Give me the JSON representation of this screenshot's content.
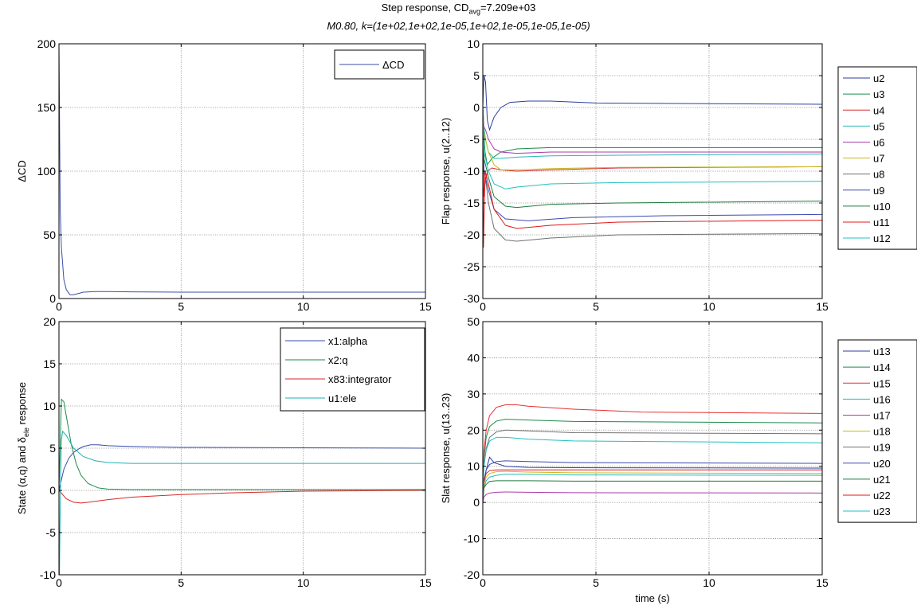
{
  "figure": {
    "title_prefix": "Step response, CD",
    "title_sub": "avg",
    "title_suffix": "=7.209e+03",
    "subtitle": "M0.80, k=(1e+02,1e+02,1e-05,1e+02,1e-05,1e-05,1e-05)"
  },
  "chart_data": [
    {
      "id": "cd",
      "type": "line",
      "ylabel": "ΔCD",
      "xlabel": "",
      "xlim": [
        0,
        15
      ],
      "ylim": [
        0,
        200
      ],
      "xticks": [
        0,
        5,
        10,
        15
      ],
      "yticks": [
        0,
        50,
        100,
        150,
        200
      ],
      "grid": true,
      "legend": "top-right",
      "series": [
        {
          "name": "ΔCD",
          "color": "#3b4ea8",
          "x": [
            0,
            0.02,
            0.05,
            0.1,
            0.2,
            0.3,
            0.45,
            0.6,
            0.8,
            1.0,
            1.5,
            2,
            3,
            5,
            10,
            15
          ],
          "y": [
            200,
            150,
            70,
            40,
            15,
            7,
            3,
            3,
            4,
            5,
            5.5,
            5.5,
            5.2,
            5,
            5,
            5
          ]
        }
      ]
    },
    {
      "id": "flap",
      "type": "line",
      "ylabel": "Flap response, u(2..12)",
      "xlabel": "",
      "xlim": [
        0,
        15
      ],
      "ylim": [
        -30,
        10
      ],
      "xticks": [
        0,
        5,
        10,
        15
      ],
      "yticks": [
        -30,
        -25,
        -20,
        -15,
        -10,
        -5,
        0,
        5,
        10
      ],
      "grid": true,
      "legend": "outside-right",
      "series": [
        {
          "name": "u2",
          "color": "#2c3e9e",
          "x": [
            0,
            0.05,
            0.12,
            0.2,
            0.3,
            0.5,
            0.8,
            1.2,
            2,
            3,
            5,
            15
          ],
          "y": [
            0,
            5,
            4,
            -2,
            -3.5,
            -1.5,
            0,
            0.8,
            1,
            1,
            0.7,
            0.5
          ]
        },
        {
          "name": "u3",
          "color": "#1b8a4a",
          "x": [
            0,
            0.05,
            0.1,
            0.2,
            0.4,
            0.8,
            1.5,
            3,
            6,
            15
          ],
          "y": [
            0,
            -4,
            -7,
            -9,
            -8,
            -7,
            -6.5,
            -6.3,
            -6.3,
            -6.3
          ]
        },
        {
          "name": "u4",
          "color": "#d62828",
          "x": [
            0,
            0.05,
            0.1,
            0.2,
            0.4,
            0.8,
            1.5,
            3,
            6,
            15
          ],
          "y": [
            0,
            -14,
            -12,
            -10,
            -9.5,
            -9.8,
            -10,
            -9.8,
            -9.5,
            -9.3
          ]
        },
        {
          "name": "u5",
          "color": "#28b8b0",
          "x": [
            0,
            0.05,
            0.12,
            0.25,
            0.5,
            0.8,
            1.5,
            3,
            6,
            15
          ],
          "y": [
            0,
            -3,
            -5,
            -7,
            -8,
            -8,
            -7.8,
            -7.6,
            -7.5,
            -7.3
          ]
        },
        {
          "name": "u6",
          "color": "#a83ca8",
          "x": [
            0,
            0.05,
            0.12,
            0.25,
            0.5,
            0.8,
            1.5,
            3,
            6,
            15
          ],
          "y": [
            0,
            -3,
            -3.5,
            -5,
            -6.5,
            -7,
            -7.2,
            -7,
            -7,
            -7
          ]
        },
        {
          "name": "u7",
          "color": "#c8b820",
          "x": [
            0,
            0.05,
            0.12,
            0.25,
            0.5,
            0.8,
            1.5,
            3,
            6,
            15
          ],
          "y": [
            0,
            -4,
            -5,
            -7,
            -9,
            -9.8,
            -9.8,
            -9.6,
            -9.4,
            -9.3
          ]
        },
        {
          "name": "u8",
          "color": "#707070",
          "x": [
            0,
            0.05,
            0.12,
            0.25,
            0.5,
            1,
            1.5,
            3,
            6,
            15
          ],
          "y": [
            0,
            -10,
            -11,
            -15,
            -19,
            -20.8,
            -21,
            -20.5,
            -20,
            -19.8
          ]
        },
        {
          "name": "u9",
          "color": "#3a4ab0",
          "x": [
            0,
            0.05,
            0.12,
            0.25,
            0.5,
            1,
            2,
            4,
            8,
            15
          ],
          "y": [
            0,
            -10,
            -11,
            -13,
            -16,
            -17.5,
            -17.8,
            -17.3,
            -17,
            -16.8
          ]
        },
        {
          "name": "u10",
          "color": "#1e7a3e",
          "x": [
            0,
            0.05,
            0.12,
            0.25,
            0.5,
            1,
            1.5,
            3,
            6,
            15
          ],
          "y": [
            0,
            -8,
            -9,
            -11,
            -14,
            -15.5,
            -15.7,
            -15.2,
            -15,
            -14.7
          ]
        },
        {
          "name": "u11",
          "color": "#e01818",
          "x": [
            0,
            0.03,
            0.1,
            0.25,
            0.5,
            1,
            1.5,
            3,
            6,
            15
          ],
          "y": [
            0,
            -22,
            -10,
            -12,
            -16,
            -18.5,
            -19,
            -18.5,
            -18,
            -17.7
          ]
        },
        {
          "name": "u12",
          "color": "#20c0c0",
          "x": [
            0,
            0.05,
            0.12,
            0.25,
            0.5,
            1,
            1.5,
            3,
            6,
            15
          ],
          "y": [
            0,
            -7,
            -8,
            -10,
            -12,
            -12.8,
            -12.5,
            -12,
            -11.8,
            -11.6
          ]
        }
      ]
    },
    {
      "id": "state",
      "type": "line",
      "ylabel_prefix": "State (α,q) and δ",
      "ylabel_sub": "ele",
      "ylabel_suffix": " response",
      "xlabel": "",
      "xlim": [
        0,
        15
      ],
      "ylim": [
        -10,
        20
      ],
      "xticks": [
        0,
        5,
        10,
        15
      ],
      "yticks": [
        -10,
        -5,
        0,
        5,
        10,
        15,
        20
      ],
      "grid": true,
      "legend": "top-right",
      "series": [
        {
          "name": "x1:alpha",
          "color": "#3b4ea8",
          "x": [
            0,
            0.2,
            0.4,
            0.6,
            0.8,
            1.0,
            1.3,
            1.6,
            2,
            3,
            5,
            15
          ],
          "y": [
            0,
            2.5,
            3.8,
            4.5,
            4.9,
            5.2,
            5.4,
            5.4,
            5.3,
            5.2,
            5.1,
            5
          ]
        },
        {
          "name": "x2:q",
          "color": "#1b8a4a",
          "x": [
            0,
            0.1,
            0.2,
            0.35,
            0.5,
            0.7,
            0.9,
            1.2,
            1.6,
            2,
            3,
            15
          ],
          "y": [
            0,
            10.8,
            10.5,
            8,
            5.5,
            3.2,
            1.8,
            0.8,
            0.3,
            0.15,
            0.1,
            0.1
          ]
        },
        {
          "name": "x83:integrator",
          "color": "#d62828",
          "x": [
            0,
            0.3,
            0.6,
            0.9,
            1.2,
            2,
            3,
            5,
            7,
            10,
            15
          ],
          "y": [
            0,
            -1,
            -1.4,
            -1.5,
            -1.4,
            -1.1,
            -0.8,
            -0.5,
            -0.3,
            -0.1,
            0
          ]
        },
        {
          "name": "u1:ele",
          "color": "#20b0b0",
          "x": [
            0,
            0.02,
            0.06,
            0.1,
            0.15,
            0.3,
            0.6,
            1,
            1.5,
            2,
            3,
            15
          ],
          "y": [
            0,
            -10,
            0,
            6,
            7,
            6.5,
            5,
            4,
            3.5,
            3.3,
            3.2,
            3.2
          ]
        }
      ]
    },
    {
      "id": "slat",
      "type": "line",
      "ylabel": "Slat response, u(13..23)",
      "xlabel": "time (s)",
      "xlim": [
        0,
        15
      ],
      "ylim": [
        -20,
        50
      ],
      "xticks": [
        0,
        5,
        10,
        15
      ],
      "yticks": [
        -20,
        -10,
        0,
        10,
        20,
        30,
        40,
        50
      ],
      "grid": true,
      "legend": "outside-right",
      "series": [
        {
          "name": "u13",
          "color": "#2c3e9e",
          "x": [
            0,
            0.05,
            0.15,
            0.3,
            0.5,
            1,
            2,
            4,
            15
          ],
          "y": [
            0,
            5,
            9,
            12.5,
            11,
            10,
            9.7,
            9.6,
            9.5
          ]
        },
        {
          "name": "u14",
          "color": "#1b8a4a",
          "x": [
            0,
            0.05,
            0.15,
            0.3,
            0.6,
            1,
            2,
            4,
            15
          ],
          "y": [
            0,
            12,
            18,
            21,
            22.5,
            23,
            22.8,
            22.4,
            22
          ]
        },
        {
          "name": "u15",
          "color": "#e83030",
          "x": [
            0,
            0.05,
            0.15,
            0.3,
            0.6,
            1,
            1.5,
            2,
            4,
            7,
            15
          ],
          "y": [
            0,
            14,
            20,
            24,
            26.3,
            27,
            27,
            26.6,
            25.8,
            25,
            24.6
          ]
        },
        {
          "name": "u16",
          "color": "#28b8b0",
          "x": [
            0,
            0.05,
            0.15,
            0.3,
            0.6,
            1,
            2,
            4,
            15
          ],
          "y": [
            0,
            4,
            6,
            7,
            7.5,
            7.8,
            7.8,
            7.6,
            7.5
          ]
        },
        {
          "name": "u17",
          "color": "#a83ca8",
          "x": [
            0,
            0.05,
            0.15,
            0.3,
            0.6,
            1,
            2,
            4,
            15
          ],
          "y": [
            0,
            1.5,
            2.2,
            2.6,
            2.8,
            2.9,
            2.8,
            2.7,
            2.6
          ]
        },
        {
          "name": "u18",
          "color": "#c8b820",
          "x": [
            0,
            0.05,
            0.15,
            0.3,
            0.6,
            1,
            2,
            4,
            15
          ],
          "y": [
            0,
            5,
            7,
            8,
            8.5,
            8.6,
            8.4,
            8.2,
            8
          ]
        },
        {
          "name": "u19",
          "color": "#707070",
          "x": [
            0,
            0.05,
            0.15,
            0.3,
            0.6,
            1,
            2,
            4,
            15
          ],
          "y": [
            0,
            10,
            15,
            18,
            19.5,
            20,
            19.8,
            19.3,
            19
          ]
        },
        {
          "name": "u20",
          "color": "#3a4ab0",
          "x": [
            0,
            0.05,
            0.15,
            0.3,
            0.6,
            1,
            2,
            4,
            15
          ],
          "y": [
            0,
            6,
            9,
            10.5,
            11.3,
            11.5,
            11.3,
            11,
            10.8
          ]
        },
        {
          "name": "u21",
          "color": "#1e7a3e",
          "x": [
            0,
            0.05,
            0.15,
            0.3,
            0.6,
            1,
            2,
            4,
            15
          ],
          "y": [
            0,
            4,
            5,
            5.8,
            6,
            6,
            6,
            5.9,
            5.9
          ]
        },
        {
          "name": "u22",
          "color": "#e01818",
          "x": [
            0,
            0.05,
            0.15,
            0.3,
            0.6,
            1,
            2,
            4,
            15
          ],
          "y": [
            0,
            6,
            8,
            8.8,
            9,
            9,
            9,
            9,
            9
          ]
        },
        {
          "name": "u23",
          "color": "#20c0c0",
          "x": [
            0,
            0.05,
            0.15,
            0.3,
            0.6,
            1,
            2,
            4,
            15
          ],
          "y": [
            0,
            10,
            14.5,
            17,
            18,
            18,
            17.5,
            17,
            16.5
          ]
        }
      ]
    }
  ]
}
